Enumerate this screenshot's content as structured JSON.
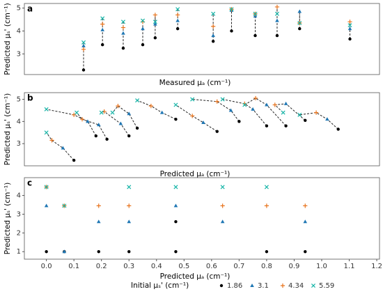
{
  "chart_data": [
    {
      "type": "scatter",
      "panel_label": "a",
      "x_label": "Measured μₐ (cm⁻¹)",
      "y_label": "Predicted μₛ' (cm⁻¹)",
      "connect": "columns",
      "xlim": [
        0,
        1.2
      ],
      "ylim": [
        2.1,
        5.2
      ],
      "yticks": [
        3,
        4,
        5
      ],
      "x": [
        0.2,
        0.264,
        0.334,
        0.4,
        0.442,
        0.518,
        0.638,
        0.7,
        0.78,
        0.854,
        0.93,
        1.1
      ],
      "series": [
        {
          "color": "#000000",
          "marker": "circle",
          "values": [
            2.3,
            3.4,
            3.25,
            3.4,
            3.7,
            4.1,
            3.55,
            4.0,
            3.8,
            3.8,
            4.1,
            3.65
          ]
        },
        {
          "color": "#1f77b4",
          "marker": "triangle",
          "values": [
            3.35,
            4.05,
            3.9,
            4.1,
            4.3,
            4.45,
            3.8,
            4.9,
            4.65,
            4.45,
            4.85,
            4.1
          ]
        },
        {
          "color": "#e8731c",
          "marker": "plus",
          "values": [
            3.2,
            4.3,
            4.15,
            4.4,
            4.7,
            4.7,
            4.2,
            4.95,
            4.75,
            5.05,
            4.35,
            4.4
          ]
        },
        {
          "color": "#17b5a8",
          "marker": "cross",
          "values": [
            3.5,
            4.55,
            4.4,
            4.45,
            4.4,
            4.95,
            4.75,
            4.95,
            4.75,
            4.75,
            4.35,
            4.25
          ]
        }
      ]
    },
    {
      "type": "scatter",
      "panel_label": "b",
      "x_label": "Predicted μₐ (cm⁻¹)",
      "y_label": "Predicted μₛ' (cm⁻¹)",
      "connect": "groups",
      "xlim": [
        -0.08,
        1.21
      ],
      "ylim": [
        2.0,
        5.3
      ],
      "yticks": [
        3,
        4,
        5
      ],
      "series": [
        {
          "color": "#000000",
          "marker": "circle",
          "x": [
            0.1,
            0.18,
            0.22,
            0.3,
            0.33,
            0.47,
            0.62,
            0.7,
            0.8,
            0.87,
            0.94,
            1.06
          ],
          "values": [
            2.25,
            3.35,
            3.2,
            3.35,
            3.7,
            4.1,
            3.55,
            4.0,
            3.8,
            3.8,
            4.05,
            3.65
          ]
        },
        {
          "color": "#1f77b4",
          "marker": "triangle",
          "x": [
            0.06,
            0.15,
            0.19,
            0.27,
            0.3,
            0.42,
            0.57,
            0.67,
            0.75,
            0.8,
            0.87,
            1.02
          ],
          "values": [
            2.8,
            4.0,
            3.85,
            3.9,
            4.35,
            4.4,
            3.95,
            4.5,
            4.55,
            4.75,
            4.8,
            4.1
          ]
        },
        {
          "color": "#e8731c",
          "marker": "plus",
          "x": [
            0.02,
            0.1,
            0.13,
            0.21,
            0.26,
            0.38,
            0.53,
            0.62,
            0.72,
            0.76,
            0.83,
            0.98
          ],
          "values": [
            3.15,
            4.3,
            4.1,
            4.45,
            4.7,
            4.7,
            4.25,
            4.9,
            4.8,
            5.05,
            4.75,
            4.4
          ]
        },
        {
          "color": "#17b5a8",
          "marker": "cross",
          "x": [
            0.0,
            0.0,
            0.11,
            0.2,
            0.24,
            0.33,
            0.47,
            0.53,
            0.64,
            0.72,
            0.86,
            0.92
          ],
          "values": [
            3.5,
            4.55,
            4.4,
            4.4,
            4.4,
            4.95,
            4.75,
            5.0,
            5.0,
            4.75,
            4.4,
            4.3
          ]
        }
      ]
    },
    {
      "type": "scatter",
      "panel_label": "c",
      "x_label": "Predicted μₐ (cm⁻¹)",
      "y_label": "Predicted μₛ' (cm⁻¹)",
      "legend_title": "Initial μₛ' (cm⁻¹)",
      "legend": "bottom",
      "xlim": [
        -0.08,
        1.21
      ],
      "ylim": [
        0.6,
        4.95
      ],
      "yticks": [
        1,
        2,
        3,
        4
      ],
      "xticks": [
        {
          "value": 0.0,
          "label": "0.0"
        },
        0.1,
        0.2,
        0.3,
        0.4,
        0.5,
        0.6,
        0.7,
        0.8,
        0.9,
        {
          "value": 1.0,
          "label": "1.0"
        },
        1.1,
        1.2
      ],
      "series": [
        {
          "name": "1.86",
          "color": "#000000",
          "marker": "circle",
          "x": [
            0.0,
            0.065,
            0.19,
            0.3,
            0.47,
            0.47,
            0.8,
            0.94
          ],
          "values": [
            1.0,
            1.0,
            1.0,
            1.0,
            1.0,
            2.6,
            1.0,
            1.0
          ]
        },
        {
          "name": "3.1",
          "color": "#1f77b4",
          "marker": "triangle",
          "x": [
            0.0,
            0.065,
            0.19,
            0.3,
            0.47,
            0.64,
            0.94
          ],
          "values": [
            3.45,
            1.0,
            2.6,
            2.6,
            3.45,
            2.6,
            2.6
          ]
        },
        {
          "name": "4.34",
          "color": "#e8731c",
          "marker": "plus",
          "x": [
            0.0,
            0.065,
            0.19,
            0.3,
            0.64,
            0.8,
            0.94
          ],
          "values": [
            4.45,
            3.45,
            3.45,
            3.45,
            3.45,
            3.45,
            3.45
          ]
        },
        {
          "name": "5.59",
          "color": "#17b5a8",
          "marker": "cross",
          "x": [
            0.0,
            0.065,
            0.3,
            0.47,
            0.64,
            0.8
          ],
          "values": [
            4.45,
            3.45,
            4.45,
            4.45,
            4.45,
            4.45
          ]
        }
      ]
    }
  ]
}
